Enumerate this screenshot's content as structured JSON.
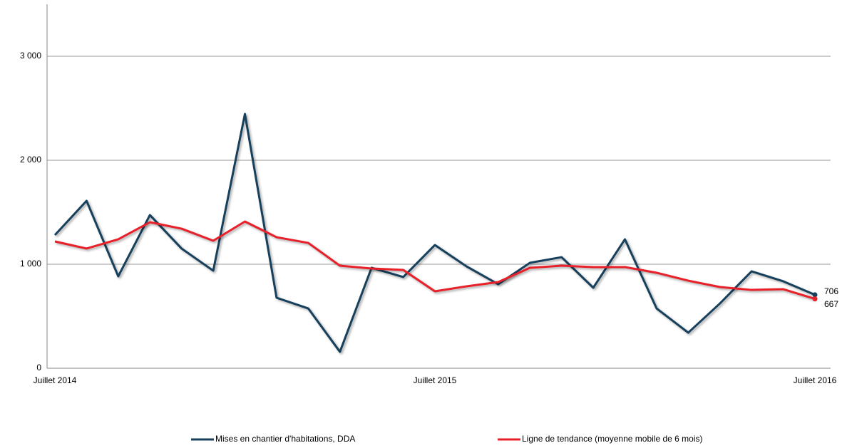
{
  "chart_data": {
    "type": "line",
    "categories": [
      "Juillet 2014",
      null,
      null,
      null,
      null,
      null,
      null,
      null,
      null,
      null,
      null,
      null,
      "Juillet 2015",
      null,
      null,
      null,
      null,
      null,
      null,
      null,
      null,
      null,
      null,
      null,
      "Juillet 2016"
    ],
    "series": [
      {
        "name": "Mises en chantier d'habitations, DDA",
        "color": "#17405c",
        "values": [
          1281,
          1610,
          884,
          1473,
          1151,
          938,
          2445,
          678,
          575,
          158,
          966,
          877,
          1185,
          979,
          808,
          1014,
          1068,
          774,
          1240,
          575,
          342,
          623,
          932,
          836,
          706
        ]
      },
      {
        "name": "Ligne de tendance (moyenne mobile de 6 mois)",
        "color": "#e8202a",
        "values": [
          1219,
          1151,
          1240,
          1404,
          1342,
          1226,
          1411,
          1260,
          1205,
          986,
          959,
          945,
          740,
          788,
          829,
          966,
          986,
          973,
          973,
          918,
          842,
          781,
          753,
          760,
          667
        ]
      }
    ],
    "ylim": [
      0,
      3500
    ],
    "yticks": [
      0,
      {
        "value": 1000,
        "label": "1 000"
      },
      {
        "value": 2000,
        "label": "2 000"
      },
      {
        "value": 3000,
        "label": "3 000"
      }
    ],
    "grid": true
  }
}
